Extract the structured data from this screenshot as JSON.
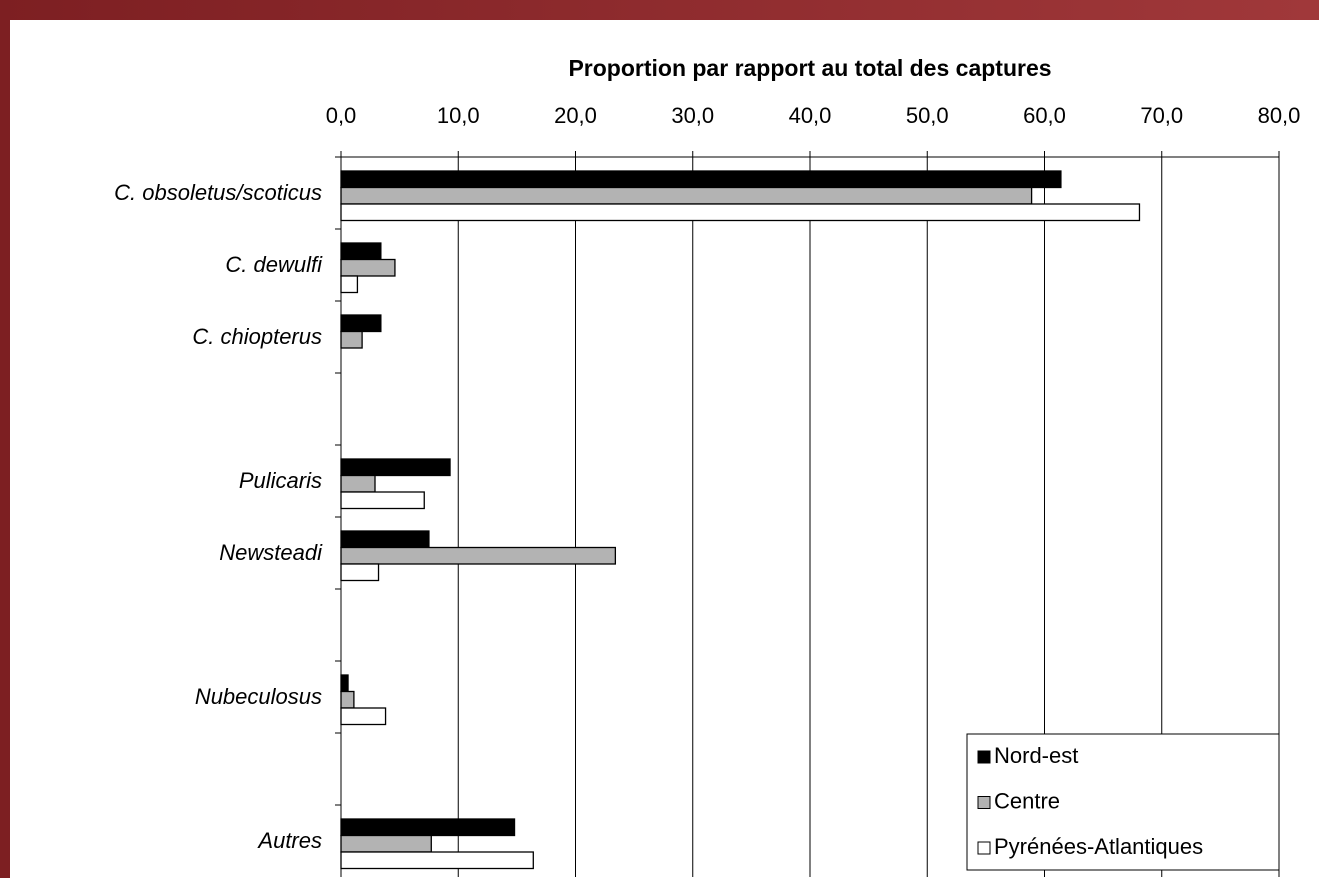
{
  "chart_data": {
    "type": "hbar",
    "title": "Proportion par rapport au total des captures",
    "categories": [
      "C. obsoletus/scoticus",
      "C. dewulfi",
      "C. chiopterus",
      null,
      "Pulicaris",
      "Newsteadi",
      null,
      "Nubeculosus",
      null,
      "Autres"
    ],
    "series": [
      {
        "name": "Nord-est",
        "color": "#000000",
        "values": [
          61.4,
          3.4,
          3.4,
          null,
          9.3,
          7.5,
          null,
          0.6,
          null,
          14.8
        ]
      },
      {
        "name": "Centre",
        "color": "#b3b3b3",
        "values": [
          58.9,
          4.6,
          1.8,
          null,
          2.9,
          23.4,
          null,
          1.1,
          null,
          7.7
        ]
      },
      {
        "name": "Pyrénées-Atlantiques",
        "color": "#ffffff",
        "values": [
          68.1,
          1.4,
          0,
          null,
          7.1,
          3.2,
          null,
          3.8,
          null,
          16.4
        ]
      }
    ],
    "xlim": [
      0,
      80
    ],
    "xticks": [
      {
        "value": 0,
        "label": "0,0"
      },
      {
        "value": 10,
        "label": "10,0"
      },
      {
        "value": 20,
        "label": "20,0"
      },
      {
        "value": 30,
        "label": "30,0"
      },
      {
        "value": 40,
        "label": "40,0"
      },
      {
        "value": 50,
        "label": "50,0"
      },
      {
        "value": 60,
        "label": "60,0"
      },
      {
        "value": 70,
        "label": "70,0"
      },
      {
        "value": 80,
        "label": "80,0"
      }
    ],
    "grid": true,
    "legend": "lower right"
  }
}
